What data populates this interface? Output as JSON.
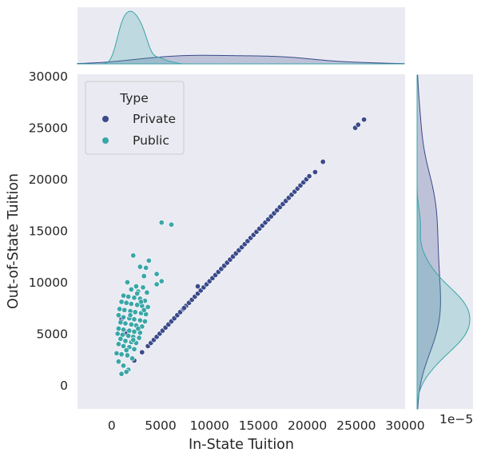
{
  "chart_data": {
    "type": "scatter",
    "subtype": "jointplot",
    "xlabel": "In-State Tuition",
    "ylabel": "Out-of-State Tuition",
    "xlim": [
      -3500,
      30000
    ],
    "ylim": [
      -2300,
      30200
    ],
    "x_ticks": [
      0,
      5000,
      10000,
      15000,
      20000,
      25000,
      30000
    ],
    "y_ticks": [
      0,
      5000,
      10000,
      15000,
      20000,
      25000,
      30000
    ],
    "right_marginal_exponent_label": "1e−5",
    "grid": false,
    "background": "#eaeaf2",
    "legend": {
      "title": "Type",
      "placement": "top-left",
      "entries": [
        {
          "label": "Private",
          "color": "#3b4a8a"
        },
        {
          "label": "Public",
          "color": "#3aa6a8"
        }
      ]
    },
    "series": [
      {
        "name": "Private",
        "color": "#3b4a8a",
        "points": [
          [
            1000,
            6400
          ],
          [
            1300,
            5300
          ],
          [
            1500,
            5000
          ],
          [
            2300,
            2400
          ],
          [
            3100,
            3200
          ],
          [
            3700,
            3800
          ],
          [
            4000,
            4100
          ],
          [
            4300,
            4400
          ],
          [
            4600,
            4700
          ],
          [
            4900,
            5000
          ],
          [
            5200,
            5300
          ],
          [
            5500,
            5600
          ],
          [
            5800,
            5900
          ],
          [
            6100,
            6200
          ],
          [
            6400,
            6500
          ],
          [
            6700,
            6800
          ],
          [
            7000,
            7100
          ],
          [
            7300,
            7400
          ],
          [
            7600,
            7700
          ],
          [
            7900,
            8000
          ],
          [
            8200,
            8300
          ],
          [
            8500,
            8600
          ],
          [
            8800,
            8900
          ],
          [
            9100,
            9200
          ],
          [
            9400,
            9500
          ],
          [
            9700,
            9800
          ],
          [
            10000,
            10100
          ],
          [
            10300,
            10400
          ],
          [
            10600,
            10700
          ],
          [
            10900,
            11000
          ],
          [
            11200,
            11300
          ],
          [
            11500,
            11600
          ],
          [
            11800,
            11900
          ],
          [
            12100,
            12200
          ],
          [
            12400,
            12500
          ],
          [
            12700,
            12800
          ],
          [
            13000,
            13100
          ],
          [
            13300,
            13400
          ],
          [
            13600,
            13700
          ],
          [
            13900,
            14000
          ],
          [
            14200,
            14300
          ],
          [
            14500,
            14600
          ],
          [
            14800,
            14900
          ],
          [
            15100,
            15200
          ],
          [
            15400,
            15500
          ],
          [
            15700,
            15800
          ],
          [
            16000,
            16100
          ],
          [
            16300,
            16400
          ],
          [
            16600,
            16700
          ],
          [
            16900,
            17000
          ],
          [
            17200,
            17300
          ],
          [
            17500,
            17600
          ],
          [
            17800,
            17900
          ],
          [
            18100,
            18200
          ],
          [
            18400,
            18500
          ],
          [
            18700,
            18800
          ],
          [
            19000,
            19100
          ],
          [
            19300,
            19400
          ],
          [
            19600,
            19700
          ],
          [
            19900,
            20000
          ],
          [
            20200,
            20300
          ],
          [
            20800,
            20700
          ],
          [
            21600,
            21700
          ],
          [
            24900,
            25000
          ],
          [
            25200,
            25300
          ],
          [
            25800,
            25800
          ],
          [
            8800,
            9600
          ],
          [
            7400,
            7500
          ]
        ]
      },
      {
        "name": "Public",
        "color": "#3aa6a8",
        "points": [
          [
            5100,
            15800
          ],
          [
            6100,
            15600
          ],
          [
            2200,
            12600
          ],
          [
            3800,
            12100
          ],
          [
            2900,
            11500
          ],
          [
            3500,
            11400
          ],
          [
            3300,
            10600
          ],
          [
            4600,
            10800
          ],
          [
            5100,
            10100
          ],
          [
            4600,
            9800
          ],
          [
            1600,
            10000
          ],
          [
            2500,
            9600
          ],
          [
            3200,
            9500
          ],
          [
            2000,
            9300
          ],
          [
            2700,
            9100
          ],
          [
            3600,
            9000
          ],
          [
            1200,
            8700
          ],
          [
            1700,
            8600
          ],
          [
            2300,
            8500
          ],
          [
            2900,
            8400
          ],
          [
            3400,
            8200
          ],
          [
            1000,
            8100
          ],
          [
            1500,
            8000
          ],
          [
            2000,
            7900
          ],
          [
            2600,
            7800
          ],
          [
            3100,
            7700
          ],
          [
            3700,
            7600
          ],
          [
            800,
            7400
          ],
          [
            1300,
            7300
          ],
          [
            1900,
            7200
          ],
          [
            2400,
            7100
          ],
          [
            3000,
            7000
          ],
          [
            3500,
            6900
          ],
          [
            700,
            6800
          ],
          [
            1200,
            6600
          ],
          [
            1800,
            6500
          ],
          [
            2300,
            6400
          ],
          [
            2900,
            6300
          ],
          [
            3400,
            6200
          ],
          [
            900,
            6100
          ],
          [
            1400,
            6000
          ],
          [
            2000,
            5900
          ],
          [
            2500,
            5800
          ],
          [
            3100,
            5700
          ],
          [
            700,
            5500
          ],
          [
            1200,
            5400
          ],
          [
            1800,
            5300
          ],
          [
            2300,
            5200
          ],
          [
            2900,
            5100
          ],
          [
            600,
            5000
          ],
          [
            1100,
            4900
          ],
          [
            1700,
            4800
          ],
          [
            2200,
            4700
          ],
          [
            2800,
            4600
          ],
          [
            900,
            4500
          ],
          [
            1400,
            4300
          ],
          [
            2000,
            4200
          ],
          [
            2500,
            4100
          ],
          [
            700,
            4000
          ],
          [
            1200,
            3800
          ],
          [
            1800,
            3700
          ],
          [
            2300,
            3500
          ],
          [
            500,
            3100
          ],
          [
            1000,
            3000
          ],
          [
            1600,
            2900
          ],
          [
            2100,
            2600
          ],
          [
            700,
            2300
          ],
          [
            1200,
            1900
          ],
          [
            1700,
            1500
          ],
          [
            1000,
            1100
          ],
          [
            1500,
            1300
          ],
          [
            2600,
            8900
          ],
          [
            3000,
            8100
          ],
          [
            1900,
            6800
          ],
          [
            2700,
            5500
          ],
          [
            2200,
            4400
          ],
          [
            1500,
            3400
          ],
          [
            3300,
            7300
          ]
        ]
      }
    ]
  }
}
